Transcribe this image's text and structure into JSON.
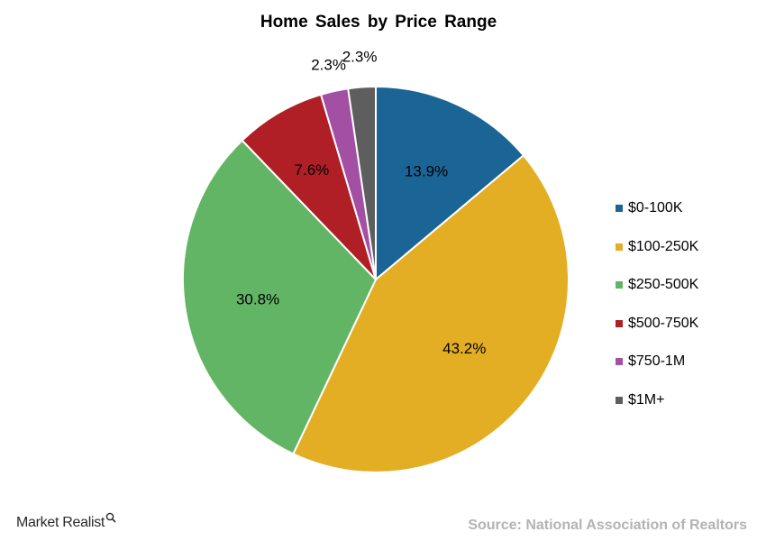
{
  "chart_data": {
    "type": "pie",
    "title": "Home Sales by Price Range",
    "categories": [
      "$0-100K",
      "$100-250K",
      "$250-500K",
      "$500-750K",
      "$750-1M",
      "$1M+"
    ],
    "values": [
      13.9,
      43.2,
      30.8,
      7.6,
      2.3,
      2.3
    ],
    "data_labels": [
      "13.9%",
      "43.2%",
      "30.8%",
      "7.6%",
      "2.3%",
      "2.3%"
    ],
    "colors": [
      "#1a6496",
      "#e3ae24",
      "#62b564",
      "#b11f26",
      "#a24fa4",
      "#5e5e5e"
    ],
    "legend_placement": "right"
  },
  "footer": {
    "brand": "Market Realist",
    "brand_icon": "magnifier-icon",
    "source": "Source: National Association of Realtors"
  }
}
